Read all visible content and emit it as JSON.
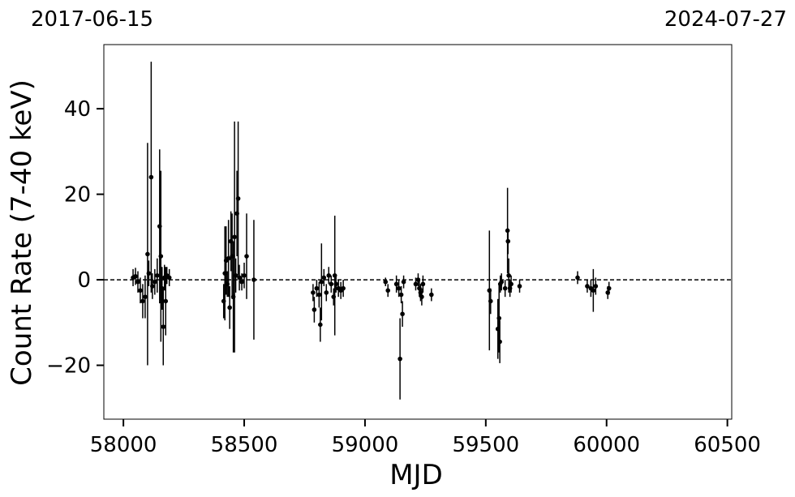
{
  "chart_data": {
    "type": "errorbar",
    "annotations": [
      "2017-06-15",
      "2024-07-27"
    ],
    "x_label": "MJD",
    "y_label": "Count Rate (7-40 keV)",
    "xlim": [
      57919,
      60518
    ],
    "ylim": [
      -32.6,
      55
    ],
    "xticks": [
      58000,
      58500,
      59000,
      59500,
      60000,
      60500
    ],
    "yticks": [
      {
        "value": -20,
        "label": "−20"
      },
      0,
      20,
      40
    ],
    "reference_line": 0,
    "color": "#000000",
    "series": [
      {
        "x": [
          58040,
          58050,
          58060,
          58070,
          58080,
          58090,
          58100,
          58105,
          58115,
          58120,
          58130,
          58140,
          58150,
          58155,
          58160,
          58165,
          58170,
          58175,
          58180,
          58190,
          58415,
          58420,
          58425,
          58430,
          58435,
          58440,
          58445,
          58450,
          58455,
          58460,
          58465,
          58470,
          58475,
          58480,
          58490,
          58500,
          58510,
          58540,
          58785,
          58790,
          58800,
          58810,
          58815,
          58820,
          58830,
          58840,
          58850,
          58860,
          58870,
          58875,
          58880,
          58890,
          58900,
          58910,
          59085,
          59095,
          59130,
          59140,
          59145,
          59150,
          59155,
          59160,
          59210,
          59220,
          59225,
          59230,
          59235,
          59240,
          59275,
          59515,
          59520,
          59550,
          59555,
          59558,
          59560,
          59565,
          59580,
          59590,
          59592,
          59595,
          59600,
          59605,
          59640,
          59880,
          59920,
          59935,
          59945,
          59955,
          60005,
          60010
        ],
        "values": [
          0.5,
          0.8,
          -0.5,
          -2.5,
          -5,
          -4,
          6,
          1.5,
          24,
          -1.5,
          -0.5,
          1,
          12.5,
          5.5,
          -2,
          -11,
          0.5,
          -5,
          1,
          0.5,
          -5,
          1.5,
          4.5,
          -1,
          5,
          -6.5,
          9,
          5.5,
          -4,
          10,
          1,
          15.5,
          19,
          0.5,
          -0.5,
          1,
          5.5,
          0,
          -3,
          -7,
          -2,
          -3.5,
          -10.5,
          -0.5,
          0.5,
          -3,
          1,
          -1,
          -4,
          1,
          -1,
          -2,
          -2.5,
          -2,
          -0.5,
          -2.5,
          -1,
          -2,
          -18.5,
          -3.5,
          -8,
          -0.5,
          -1,
          0,
          -2,
          -3,
          -4,
          -1,
          -3.5,
          -2.5,
          -5,
          -11.5,
          -9,
          -14.5,
          -1,
          -0.5,
          -2,
          11.5,
          9,
          1,
          -2,
          -1,
          -1.5,
          0.5,
          -1.5,
          -2,
          -2.5,
          -1.5,
          -3,
          -2
        ],
        "errors": [
          2,
          2,
          2.5,
          3,
          4,
          5,
          26,
          3,
          27,
          3,
          3,
          4,
          18,
          20,
          5,
          9,
          3,
          8,
          2,
          2,
          4,
          11,
          8,
          3,
          9,
          5,
          7,
          10,
          13,
          27,
          4,
          10,
          18,
          3,
          2,
          3,
          10,
          14,
          2,
          3,
          2,
          3,
          4,
          9,
          2,
          2,
          2,
          2,
          2,
          14,
          2,
          2,
          2,
          2,
          1,
          1.5,
          2,
          2,
          9.5,
          2,
          3,
          1.5,
          1.5,
          1.5,
          2,
          2,
          2,
          2,
          1.5,
          14,
          3,
          7,
          8,
          5,
          2,
          2,
          2,
          10,
          3,
          4,
          2,
          2,
          1.5,
          1.5,
          1.5,
          2,
          5,
          2,
          1.5,
          1.5
        ]
      }
    ]
  }
}
